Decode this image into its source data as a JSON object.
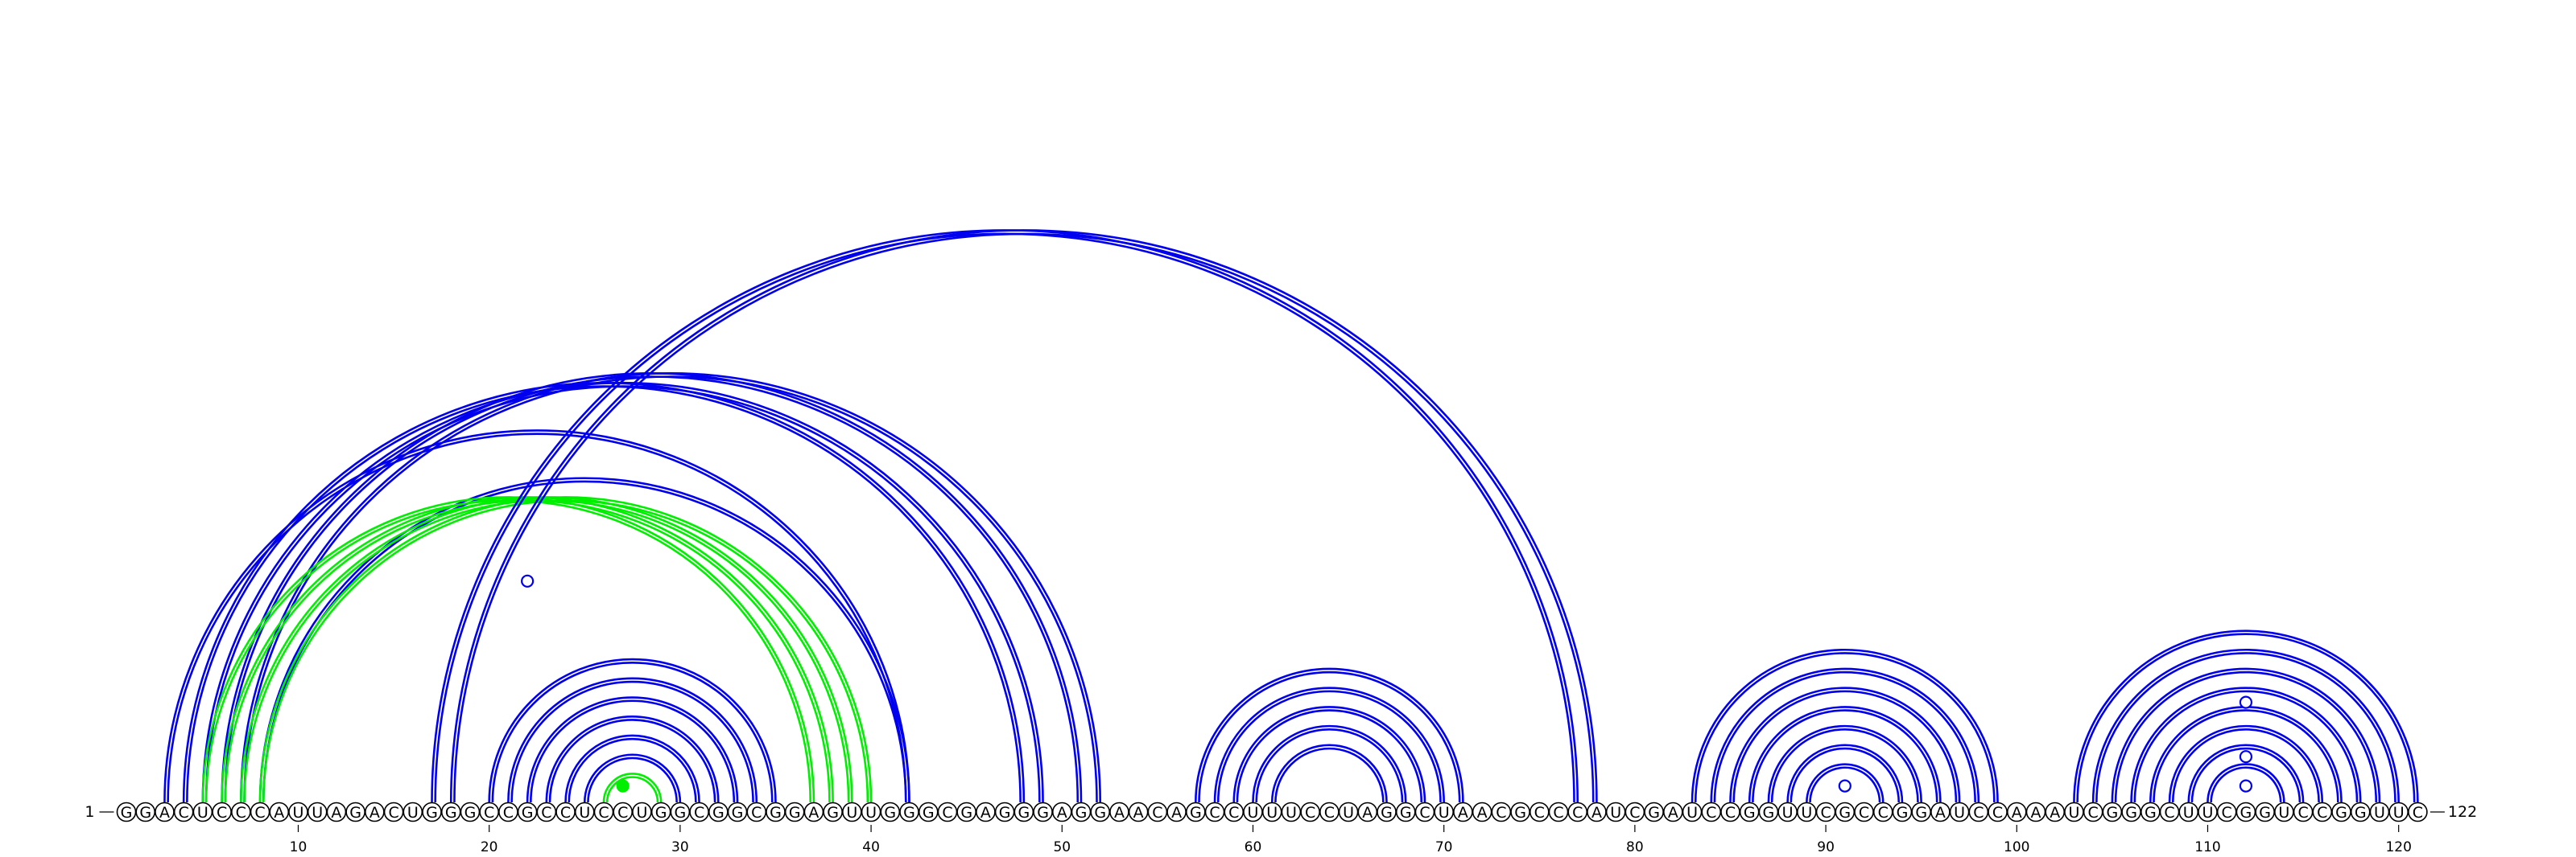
{
  "sequence": "GGACUCCCAUUAGACUGGGCCGCCUCCUGGCGGCGGAGUUGGGCGAGGGAGGAACAGCCUUUCCUAGGCUAACGCCCAUCGAUCCGGUUCGCCGGAUCCAAAUCGGGCUUCGGUCCGGUUC",
  "start_label": "1",
  "end_label": "122",
  "ticks": [
    {
      "pos": 10,
      "label": "10"
    },
    {
      "pos": 20,
      "label": "20"
    },
    {
      "pos": 30,
      "label": "30"
    },
    {
      "pos": 40,
      "label": "40"
    },
    {
      "pos": 50,
      "label": "50"
    },
    {
      "pos": 60,
      "label": "60"
    },
    {
      "pos": 70,
      "label": "70"
    },
    {
      "pos": 80,
      "label": "80"
    },
    {
      "pos": 90,
      "label": "90"
    },
    {
      "pos": 100,
      "label": "100"
    },
    {
      "pos": 110,
      "label": "110"
    },
    {
      "pos": 120,
      "label": "120"
    }
  ],
  "colors": {
    "blue": "#0000ee",
    "green": "#00ee00"
  },
  "arcs": [
    {
      "i": 3,
      "j": 42,
      "color": "blue"
    },
    {
      "i": 4,
      "j": 48,
      "color": "blue"
    },
    {
      "i": 5,
      "j": 49,
      "color": "blue"
    },
    {
      "i": 6,
      "j": 51,
      "color": "blue"
    },
    {
      "i": 7,
      "j": 52,
      "color": "blue"
    },
    {
      "i": 8,
      "j": 42,
      "color": "blue"
    },
    {
      "i": 5,
      "j": 37,
      "color": "green"
    },
    {
      "i": 6,
      "j": 38,
      "color": "green"
    },
    {
      "i": 7,
      "j": 39,
      "color": "green"
    },
    {
      "i": 8,
      "j": 40,
      "color": "green"
    },
    {
      "i": 17,
      "j": 77,
      "color": "blue"
    },
    {
      "i": 18,
      "j": 78,
      "color": "blue"
    },
    {
      "i": 20,
      "j": 35,
      "color": "blue"
    },
    {
      "i": 21,
      "j": 34,
      "color": "blue"
    },
    {
      "i": 22,
      "j": 33,
      "color": "blue"
    },
    {
      "i": 23,
      "j": 32,
      "color": "blue"
    },
    {
      "i": 24,
      "j": 31,
      "color": "blue"
    },
    {
      "i": 25,
      "j": 30,
      "color": "blue"
    },
    {
      "i": 26,
      "j": 29,
      "color": "green"
    },
    {
      "i": 57,
      "j": 71,
      "color": "blue"
    },
    {
      "i": 58,
      "j": 70,
      "color": "blue"
    },
    {
      "i": 59,
      "j": 69,
      "color": "blue"
    },
    {
      "i": 60,
      "j": 68,
      "color": "blue"
    },
    {
      "i": 61,
      "j": 67,
      "color": "blue"
    },
    {
      "i": 83,
      "j": 99,
      "color": "blue"
    },
    {
      "i": 84,
      "j": 98,
      "color": "blue"
    },
    {
      "i": 85,
      "j": 97,
      "color": "blue"
    },
    {
      "i": 86,
      "j": 96,
      "color": "blue"
    },
    {
      "i": 87,
      "j": 95,
      "color": "blue"
    },
    {
      "i": 88,
      "j": 94,
      "color": "blue"
    },
    {
      "i": 89,
      "j": 93,
      "color": "blue"
    },
    {
      "i": 103,
      "j": 121,
      "color": "blue"
    },
    {
      "i": 104,
      "j": 120,
      "color": "blue"
    },
    {
      "i": 105,
      "j": 119,
      "color": "blue"
    },
    {
      "i": 106,
      "j": 118,
      "color": "blue"
    },
    {
      "i": 107,
      "j": 117,
      "color": "blue"
    },
    {
      "i": 108,
      "j": 116,
      "color": "blue"
    },
    {
      "i": 109,
      "j": 115,
      "color": "blue"
    },
    {
      "i": 110,
      "j": 114,
      "color": "blue"
    }
  ],
  "markers": [
    {
      "pos": 22,
      "level": 0.51,
      "style": "open",
      "color": "blue"
    },
    {
      "pos": 27,
      "level": 0.02,
      "style": "filled",
      "color": "green"
    },
    {
      "pos": 91,
      "level": 0.02,
      "style": "open",
      "color": "blue"
    },
    {
      "pos": 112,
      "level": 0.02,
      "style": "open",
      "color": "blue"
    },
    {
      "pos": 112,
      "level": 0.09,
      "style": "open",
      "color": "blue"
    },
    {
      "pos": 112,
      "level": 0.22,
      "style": "open",
      "color": "blue"
    }
  ]
}
